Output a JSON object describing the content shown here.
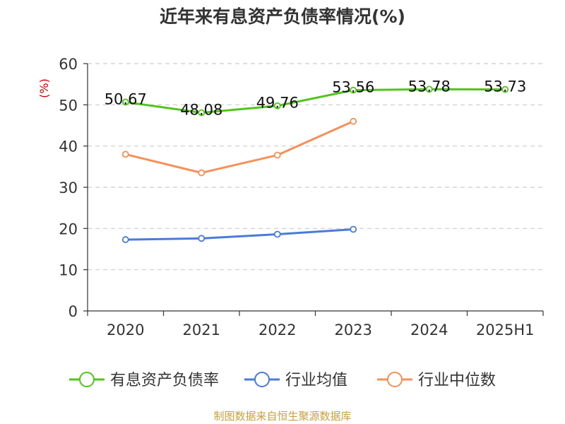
{
  "chart_data": {
    "type": "line",
    "title": "近年来有息资产负债率情况(%)",
    "ylabel": "(%)",
    "categories": [
      "2020",
      "2021",
      "2022",
      "2023",
      "2024",
      "2025H1"
    ],
    "ylim": [
      0,
      60
    ],
    "yticks": [
      "0",
      "10",
      "20",
      "30",
      "40",
      "50",
      "60"
    ],
    "grid": true,
    "legend_position": "bottom",
    "series": [
      {
        "name": "有息资产负债率",
        "color": "#52c41a",
        "values": [
          50.67,
          48.08,
          49.76,
          53.56,
          53.78,
          53.73
        ],
        "labels": [
          "50.67",
          "48.08",
          "49.76",
          "53.56",
          "53.78",
          "53.73"
        ]
      },
      {
        "name": "行业均值",
        "color": "#4a7bd6",
        "values": [
          17.3,
          17.6,
          18.6,
          19.8,
          null,
          null
        ]
      },
      {
        "name": "行业中位数",
        "color": "#f5905a",
        "values": [
          38.0,
          33.5,
          37.8,
          46.0,
          null,
          null
        ]
      }
    ],
    "unit_color": "#cc0000",
    "source": "制图数据来自恒生聚源数据库",
    "source_color": "#c8a040"
  }
}
